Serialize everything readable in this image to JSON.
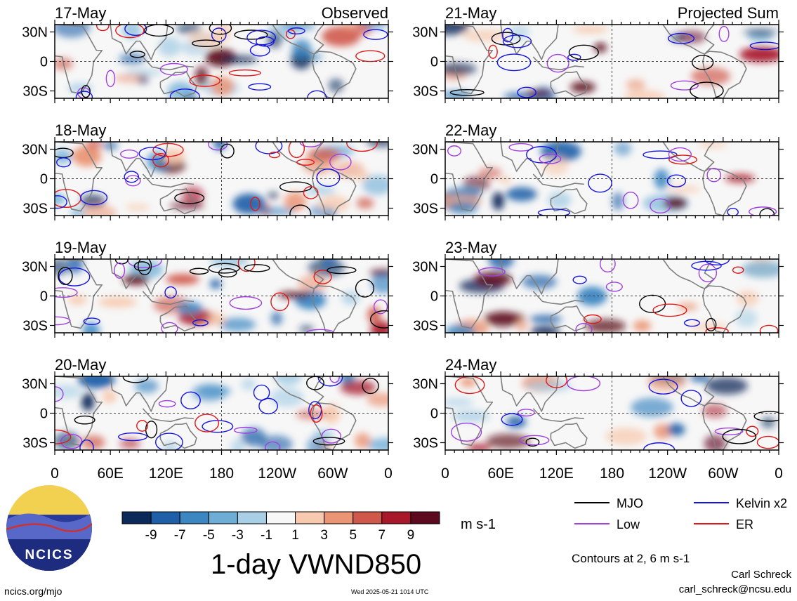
{
  "header": {
    "left_label": "Observed",
    "right_label": "Projected Sum"
  },
  "title": "1-day VWND850",
  "units": "m s-1",
  "contour_note": "Contours at 2, 6 m s-1",
  "credit": {
    "name": "Carl Schreck",
    "email": "carl_schreck@ncsu.edu"
  },
  "site": "ncics.org/mjo",
  "timestamp": "Wed 2025-05-21 1014 UTC",
  "logo_text": "NCICS",
  "legend": [
    {
      "label": "MJO",
      "color": "#000000"
    },
    {
      "label": "Kelvin x2",
      "color": "#1414e0"
    },
    {
      "label": "Low",
      "color": "#a040e0"
    },
    {
      "label": "ER",
      "color": "#e01818"
    }
  ],
  "colorbar": {
    "ticks": [
      "-9",
      "-7",
      "-5",
      "-3",
      "-1",
      "1",
      "3",
      "5",
      "7",
      "9"
    ],
    "colors": [
      "#0b2a5a",
      "#1f5fa8",
      "#3c86c2",
      "#6eaed6",
      "#a9cfe6",
      "#f7f7f7",
      "#f7c9ae",
      "#eb9575",
      "#d0584a",
      "#a8172a",
      "#5e0a1e"
    ]
  },
  "chart_data": {
    "type": "heatmap",
    "variable": "VWND850",
    "x_tick_labels": [
      "0",
      "60E",
      "120E",
      "180",
      "120W",
      "60W",
      "0"
    ],
    "y_tick_labels": [
      "30N",
      "0",
      "30S"
    ],
    "panels": [
      {
        "date": "17-May",
        "column": "Observed"
      },
      {
        "date": "18-May",
        "column": "Observed"
      },
      {
        "date": "19-May",
        "column": "Observed"
      },
      {
        "date": "20-May",
        "column": "Observed"
      },
      {
        "date": "21-May",
        "column": "Projected Sum"
      },
      {
        "date": "22-May",
        "column": "Projected Sum"
      },
      {
        "date": "23-May",
        "column": "Projected Sum"
      },
      {
        "date": "24-May",
        "column": "Projected Sum"
      }
    ]
  }
}
